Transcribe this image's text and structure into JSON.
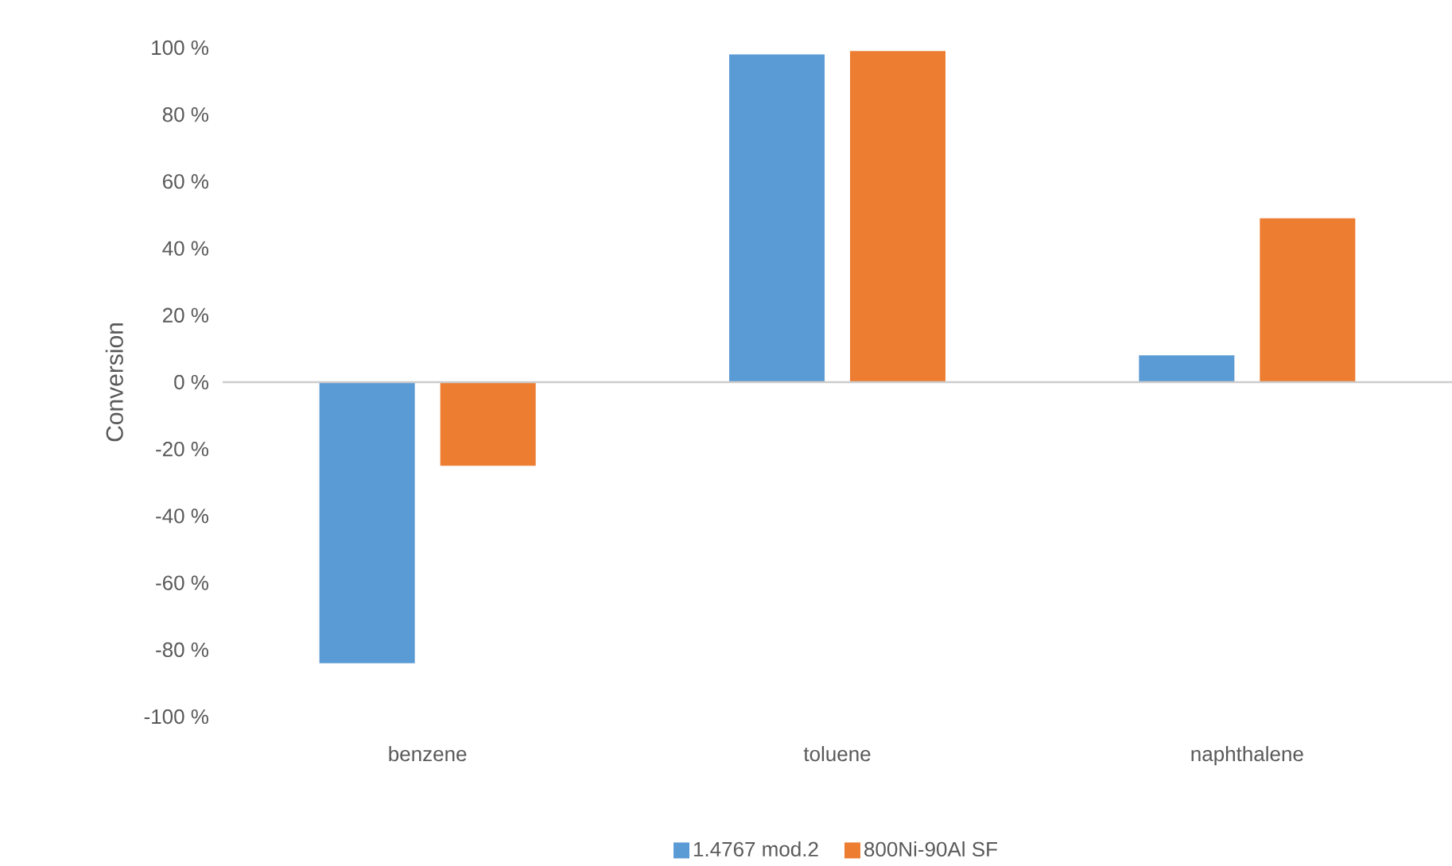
{
  "chart_data": {
    "type": "bar",
    "ylabel": "Conversion",
    "categories": [
      "benzene",
      "toluene",
      "naphthalene"
    ],
    "series": [
      {
        "name": "1.4767 mod.2",
        "color": "#5b9bd5",
        "values": [
          -84,
          98,
          8
        ]
      },
      {
        "name": "800Ni-90Al SF",
        "color": "#ed7d31",
        "values": [
          -25,
          99,
          49
        ]
      }
    ],
    "ylim": [
      -100,
      100
    ],
    "yticks": [
      {
        "value": -100,
        "label": "-100 %"
      },
      {
        "value": -80,
        "label": "-80 %"
      },
      {
        "value": -60,
        "label": "-60 %"
      },
      {
        "value": -40,
        "label": "-40 %"
      },
      {
        "value": -20,
        "label": "-20 %"
      },
      {
        "value": 0,
        "label": "0 %"
      },
      {
        "value": 20,
        "label": "20 %"
      },
      {
        "value": 40,
        "label": "40 %"
      },
      {
        "value": 60,
        "label": "60 %"
      },
      {
        "value": 80,
        "label": "80 %"
      },
      {
        "value": 100,
        "label": "100 %"
      }
    ],
    "legend": "bottom"
  }
}
